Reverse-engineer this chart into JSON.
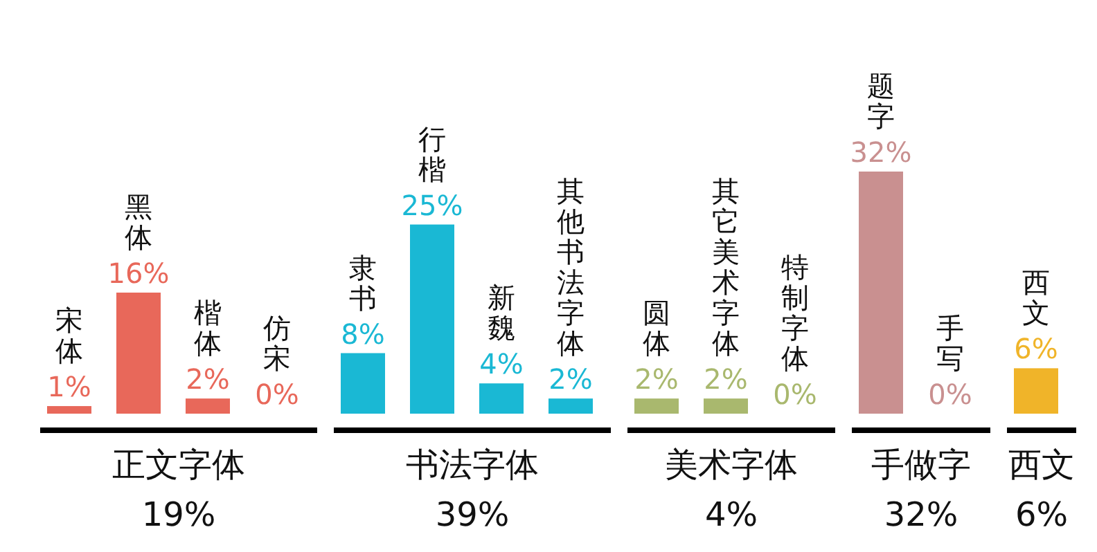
{
  "chart_data": {
    "type": "bar",
    "categories": [
      "宋体",
      "黑体",
      "楷体",
      "仿宋",
      "隶书",
      "行楷",
      "新魏",
      "其他书法字体",
      "圆体",
      "其它美术字体",
      "特制字体",
      "题字",
      "手写",
      "西文"
    ],
    "values": [
      1,
      16,
      2,
      0,
      8,
      25,
      4,
      2,
      2,
      2,
      0,
      32,
      0,
      6
    ],
    "value_labels": [
      "1%",
      "16%",
      "2%",
      "0%",
      "8%",
      "25%",
      "4%",
      "2%",
      "2%",
      "2%",
      "0%",
      "32%",
      "0%",
      "6%"
    ],
    "colors": [
      "#e8685a",
      "#e8685a",
      "#e8685a",
      "#e8685a",
      "#1ab8d4",
      "#1ab8d4",
      "#1ab8d4",
      "#1ab8d4",
      "#a9b86e",
      "#a9b86e",
      "#a9b86e",
      "#c99090",
      "#c99090",
      "#f0b429"
    ],
    "annotations": [
      "正文字体\n19%",
      "书法字体\n39%",
      "美术字体\n4%",
      "手做字\n32%",
      "西文\n6%"
    ]
  }
}
